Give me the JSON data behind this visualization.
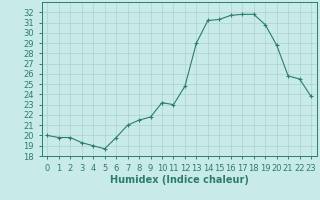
{
  "x": [
    0,
    1,
    2,
    3,
    4,
    5,
    6,
    7,
    8,
    9,
    10,
    11,
    12,
    13,
    14,
    15,
    16,
    17,
    18,
    19,
    20,
    21,
    22,
    23
  ],
  "y": [
    20.0,
    19.8,
    19.8,
    19.3,
    19.0,
    18.7,
    19.8,
    21.0,
    21.5,
    21.8,
    23.2,
    23.0,
    24.8,
    29.0,
    31.2,
    31.3,
    31.7,
    31.8,
    31.8,
    30.8,
    28.8,
    25.8,
    25.5,
    23.8
  ],
  "xlabel": "Humidex (Indice chaleur)",
  "line_color": "#2d7d6e",
  "marker": "+",
  "bg_color": "#c8eae8",
  "grid_color": "#aad4d0",
  "ylim": [
    18,
    33
  ],
  "xlim": [
    -0.5,
    23.5
  ],
  "yticks": [
    18,
    19,
    20,
    21,
    22,
    23,
    24,
    25,
    26,
    27,
    28,
    29,
    30,
    31,
    32
  ],
  "xticks": [
    0,
    1,
    2,
    3,
    4,
    5,
    6,
    7,
    8,
    9,
    10,
    11,
    12,
    13,
    14,
    15,
    16,
    17,
    18,
    19,
    20,
    21,
    22,
    23
  ],
  "tick_fontsize": 6,
  "label_fontsize": 7
}
